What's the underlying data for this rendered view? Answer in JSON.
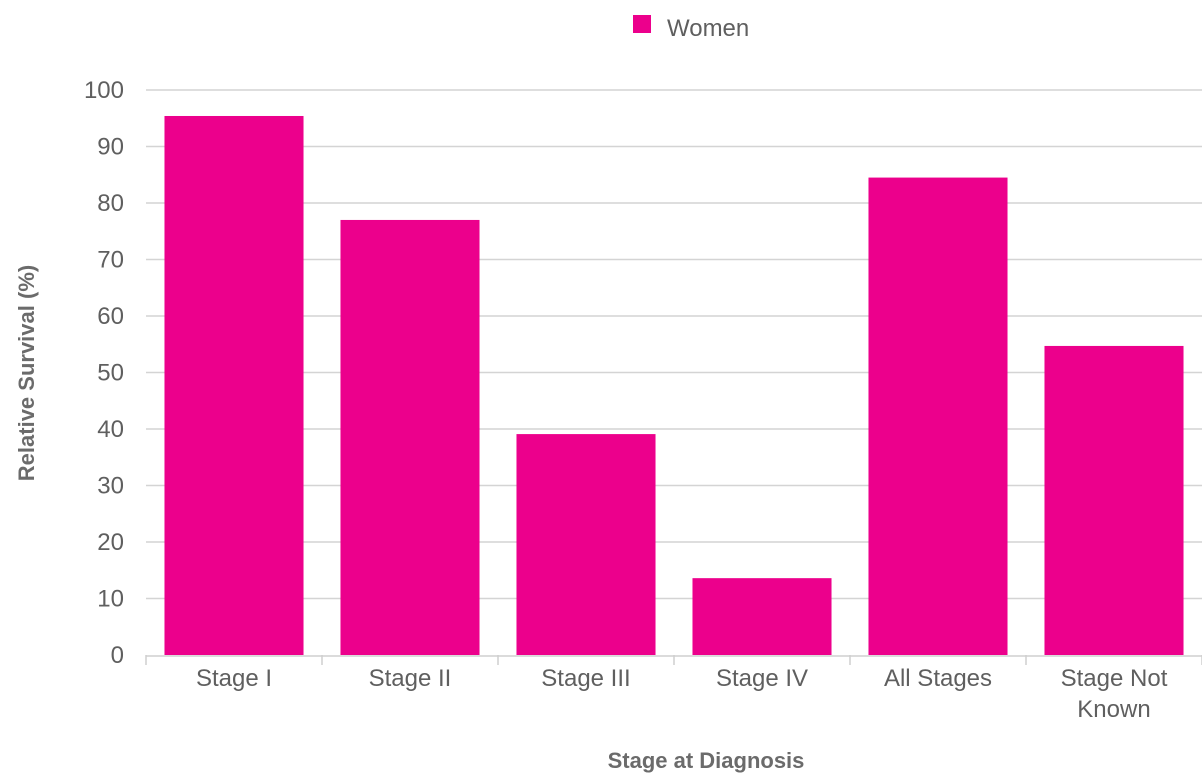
{
  "chart_data": {
    "type": "bar",
    "categories": [
      "Stage I",
      "Stage II",
      "Stage III",
      "Stage IV",
      "All Stages",
      "Stage Not Known"
    ],
    "category_label_lines": [
      [
        "Stage I"
      ],
      [
        "Stage II"
      ],
      [
        "Stage III"
      ],
      [
        "Stage IV"
      ],
      [
        "All Stages"
      ],
      [
        "Stage Not",
        "Known"
      ]
    ],
    "series": [
      {
        "name": "Women",
        "color": "#ec008c",
        "values": [
          95.4,
          77.0,
          39.1,
          13.6,
          84.5,
          54.7
        ]
      }
    ],
    "xlabel": "Stage at Diagnosis",
    "ylabel": "Relative Survival (%)",
    "ylim": [
      0,
      100
    ],
    "yticks": [
      "0",
      "10",
      "20",
      "30",
      "40",
      "50",
      "60",
      "70",
      "80",
      "90",
      "100"
    ],
    "grid": true,
    "legend_position": "top-center"
  }
}
